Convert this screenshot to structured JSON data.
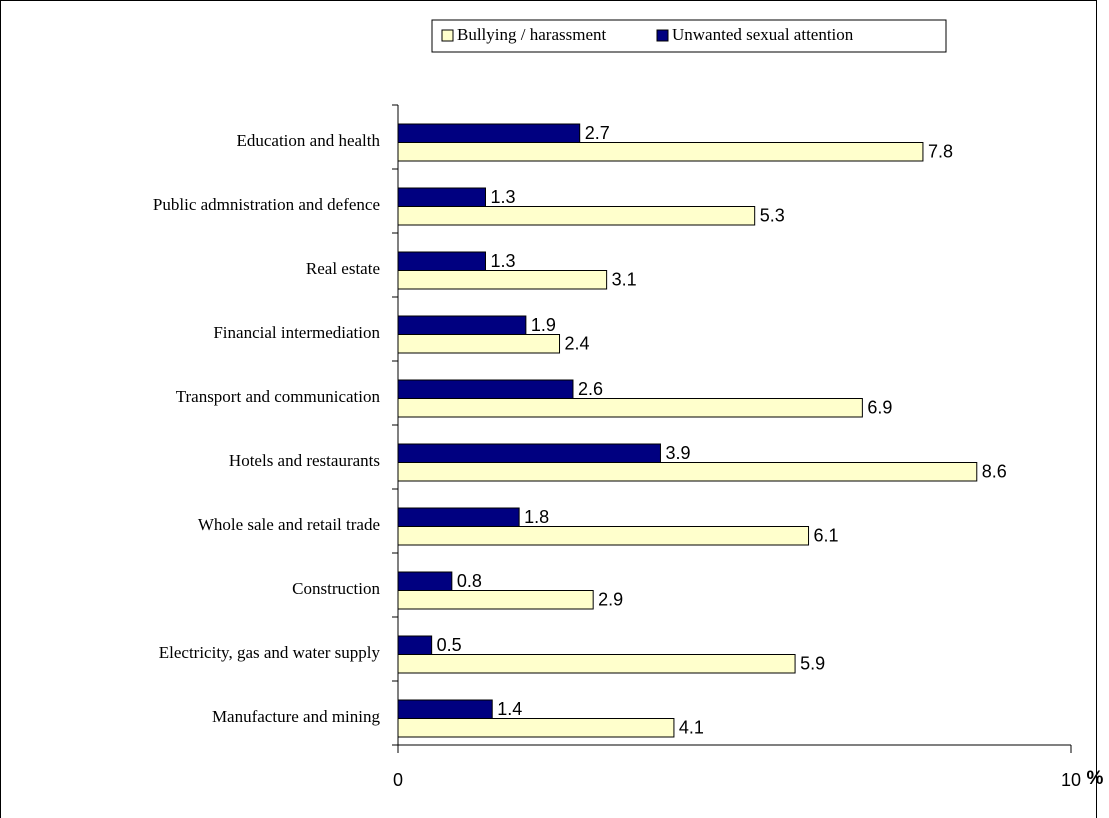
{
  "chart_data": {
    "type": "hbar",
    "categories": [
      "Education and health",
      "Public admnistration and defence",
      "Real estate",
      "Financial intermediation",
      "Transport and communication",
      "Hotels and restaurants",
      "Whole sale and retail trade",
      "Construction",
      "Electricity, gas and water supply",
      "Manufacture and mining"
    ],
    "series": [
      {
        "name": "Bullying / harassment",
        "color": "#ffffcc",
        "values": [
          7.8,
          5.3,
          3.1,
          2.4,
          6.9,
          8.6,
          6.1,
          2.9,
          5.9,
          4.1
        ]
      },
      {
        "name": "Unwanted sexual attention",
        "color": "#000080",
        "values": [
          2.7,
          1.3,
          1.3,
          1.9,
          2.6,
          3.9,
          1.8,
          0.8,
          0.5,
          1.4
        ]
      }
    ],
    "xlim": [
      0,
      10
    ],
    "xticks": [
      0,
      10
    ],
    "x_label": "%",
    "grid": false,
    "legend": "top"
  }
}
